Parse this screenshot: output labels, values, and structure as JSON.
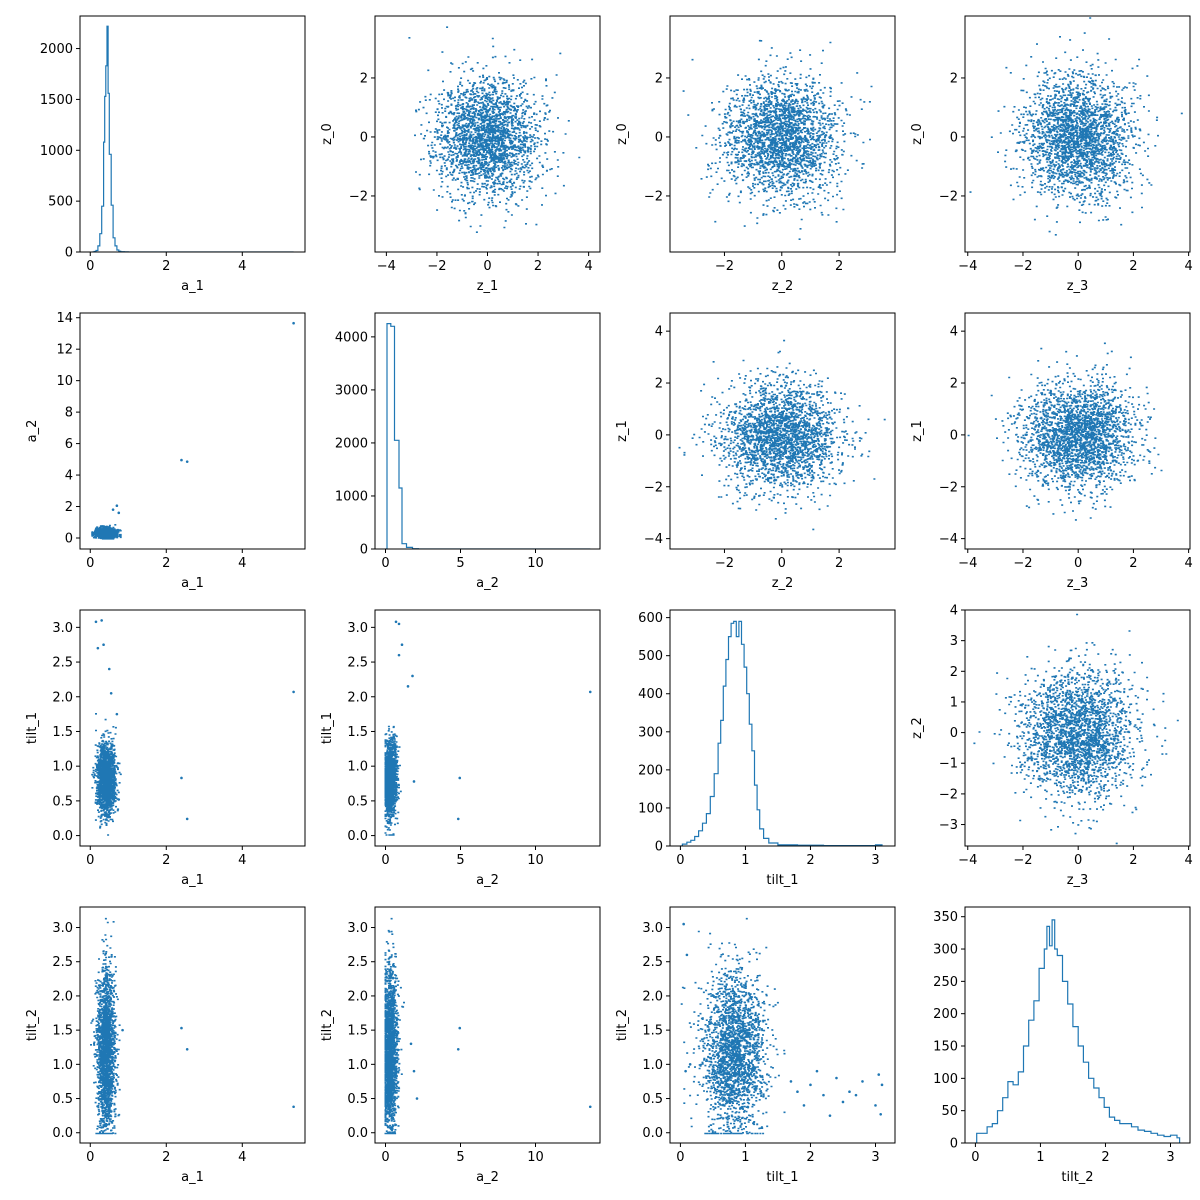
{
  "figure": {
    "rows": 4,
    "cols": 4,
    "accent": "#1f77b4"
  },
  "chart_data": [
    {
      "id": "p00",
      "type": "histogram",
      "row": 0,
      "col": 0,
      "xlabel": "a_1",
      "ylabel": "",
      "xlim": [
        -0.27,
        5.65
      ],
      "ylim": [
        0,
        2320
      ],
      "xticks": [
        0,
        2,
        4
      ],
      "yticks": [
        0,
        500,
        1000,
        1500,
        2000
      ],
      "bins": [
        [
          0.05,
          0
        ],
        [
          0.1,
          5
        ],
        [
          0.15,
          15
        ],
        [
          0.2,
          60
        ],
        [
          0.25,
          180
        ],
        [
          0.3,
          450
        ],
        [
          0.35,
          1080
        ],
        [
          0.38,
          1530
        ],
        [
          0.41,
          1830
        ],
        [
          0.44,
          2220
        ],
        [
          0.47,
          1560
        ],
        [
          0.5,
          960
        ],
        [
          0.55,
          460
        ],
        [
          0.6,
          140
        ],
        [
          0.65,
          60
        ],
        [
          0.7,
          20
        ],
        [
          0.75,
          8
        ],
        [
          0.8,
          3
        ],
        [
          0.9,
          1
        ],
        [
          1.0,
          0
        ],
        [
          5.35,
          0
        ]
      ]
    },
    {
      "id": "p01",
      "type": "scatter",
      "row": 0,
      "col": 1,
      "xlabel": "z_1",
      "ylabel": "z_0",
      "xlim": [
        -4.45,
        4.45
      ],
      "ylim": [
        -3.9,
        4.1
      ],
      "xticks": [
        -4,
        -2,
        0,
        2,
        4
      ],
      "yticks": [
        -2,
        0,
        2
      ],
      "cloud": {
        "cx": 0,
        "cy": 0,
        "sx": 1.0,
        "sy": 1.0,
        "n": 2400,
        "seed": 11
      }
    },
    {
      "id": "p02",
      "type": "scatter",
      "row": 0,
      "col": 2,
      "xlabel": "z_2",
      "ylabel": "z_0",
      "xlim": [
        -3.9,
        3.95
      ],
      "ylim": [
        -3.9,
        4.1
      ],
      "xticks": [
        -2,
        0,
        2
      ],
      "yticks": [
        -2,
        0,
        2
      ],
      "cloud": {
        "cx": 0,
        "cy": 0,
        "sx": 1.0,
        "sy": 1.0,
        "n": 2400,
        "seed": 12
      }
    },
    {
      "id": "p03",
      "type": "scatter",
      "row": 0,
      "col": 3,
      "xlabel": "z_3",
      "ylabel": "z_0",
      "xlim": [
        -4.1,
        4.05
      ],
      "ylim": [
        -3.9,
        4.1
      ],
      "xticks": [
        -4,
        -2,
        0,
        2,
        4
      ],
      "yticks": [
        -2,
        0,
        2
      ],
      "cloud": {
        "cx": 0,
        "cy": 0,
        "sx": 1.0,
        "sy": 1.0,
        "n": 2400,
        "seed": 13
      }
    },
    {
      "id": "p10",
      "type": "scatter",
      "row": 1,
      "col": 0,
      "xlabel": "a_1",
      "ylabel": "a_2",
      "xlim": [
        -0.27,
        5.65
      ],
      "ylim": [
        -0.7,
        14.3
      ],
      "xticks": [
        0,
        2,
        4
      ],
      "yticks": [
        0,
        2,
        4,
        6,
        8,
        10,
        12,
        14
      ],
      "cloud": {
        "cx": 0.42,
        "cy": 0.35,
        "sx": 0.13,
        "sy": 0.15,
        "n": 1800,
        "seed": 21,
        "clip_x": [
          0.05,
          0.8
        ],
        "clip_y": [
          0.0,
          1.4
        ]
      },
      "points": [
        [
          5.35,
          13.65
        ],
        [
          2.4,
          4.95
        ],
        [
          2.55,
          4.85
        ],
        [
          0.7,
          2.05
        ],
        [
          0.6,
          1.8
        ],
        [
          0.75,
          1.6
        ]
      ]
    },
    {
      "id": "p11",
      "type": "histogram",
      "row": 1,
      "col": 1,
      "xlabel": "a_2",
      "ylabel": "",
      "xlim": [
        -0.7,
        14.3
      ],
      "ylim": [
        0,
        4450
      ],
      "xticks": [
        0,
        5,
        10
      ],
      "yticks": [
        0,
        1000,
        2000,
        3000,
        4000
      ],
      "bins": [
        [
          0,
          0
        ],
        [
          0.1,
          4250
        ],
        [
          0.35,
          4200
        ],
        [
          0.6,
          2050
        ],
        [
          0.9,
          1150
        ],
        [
          1.1,
          100
        ],
        [
          1.4,
          30
        ],
        [
          1.8,
          5
        ],
        [
          2.2,
          0
        ],
        [
          13.65,
          0
        ]
      ]
    },
    {
      "id": "p12",
      "type": "scatter",
      "row": 1,
      "col": 2,
      "xlabel": "z_2",
      "ylabel": "z_1",
      "xlim": [
        -3.9,
        3.95
      ],
      "ylim": [
        -4.4,
        4.7
      ],
      "xticks": [
        -2,
        0,
        2
      ],
      "yticks": [
        -4,
        -2,
        0,
        2,
        4
      ],
      "cloud": {
        "cx": 0,
        "cy": 0,
        "sx": 1.0,
        "sy": 1.0,
        "n": 2400,
        "seed": 22
      }
    },
    {
      "id": "p13",
      "type": "scatter",
      "row": 1,
      "col": 3,
      "xlabel": "z_3",
      "ylabel": "z_1",
      "xlim": [
        -4.1,
        4.05
      ],
      "ylim": [
        -4.4,
        4.7
      ],
      "xticks": [
        -4,
        -2,
        0,
        2,
        4
      ],
      "yticks": [
        -4,
        -2,
        0,
        2,
        4
      ],
      "cloud": {
        "cx": 0,
        "cy": 0,
        "sx": 1.0,
        "sy": 1.0,
        "n": 2400,
        "seed": 23
      }
    },
    {
      "id": "p20",
      "type": "scatter",
      "row": 2,
      "col": 0,
      "xlabel": "a_1",
      "ylabel": "tilt_1",
      "xlim": [
        -0.27,
        5.65
      ],
      "ylim": [
        -0.15,
        3.25
      ],
      "xticks": [
        0,
        2,
        4
      ],
      "yticks": [
        0.0,
        0.5,
        1.0,
        1.5,
        2.0,
        2.5,
        3.0
      ],
      "cloud": {
        "cx": 0.42,
        "cy": 0.82,
        "sx": 0.12,
        "sy": 0.24,
        "n": 1800,
        "seed": 31,
        "clip_x": [
          0.05,
          0.85
        ],
        "clip_y": [
          0.02,
          2.5
        ]
      },
      "points": [
        [
          5.35,
          2.07
        ],
        [
          2.4,
          0.83
        ],
        [
          2.55,
          0.24
        ],
        [
          0.15,
          3.08
        ],
        [
          0.3,
          3.1
        ],
        [
          0.35,
          2.75
        ],
        [
          0.2,
          2.7
        ],
        [
          0.5,
          2.4
        ],
        [
          0.55,
          2.05
        ],
        [
          0.75,
          0.52
        ],
        [
          0.7,
          1.75
        ]
      ]
    },
    {
      "id": "p21",
      "type": "scatter",
      "row": 2,
      "col": 1,
      "xlabel": "a_2",
      "ylabel": "tilt_1",
      "xlim": [
        -0.7,
        14.3
      ],
      "ylim": [
        -0.15,
        3.25
      ],
      "xticks": [
        0,
        5,
        10
      ],
      "yticks": [
        0.0,
        0.5,
        1.0,
        1.5,
        2.0,
        2.5,
        3.0
      ],
      "cloud": {
        "cx": 0.3,
        "cy": 0.82,
        "sx": 0.22,
        "sy": 0.26,
        "n": 1800,
        "seed": 32,
        "clip_x": [
          0.0,
          1.6
        ],
        "clip_y": [
          0.02,
          2.5
        ]
      },
      "points": [
        [
          13.65,
          2.07
        ],
        [
          4.95,
          0.83
        ],
        [
          4.85,
          0.24
        ],
        [
          0.7,
          3.08
        ],
        [
          0.9,
          3.05
        ],
        [
          1.1,
          2.75
        ],
        [
          0.9,
          2.6
        ],
        [
          1.8,
          2.3
        ],
        [
          1.5,
          2.15
        ],
        [
          1.9,
          0.78
        ]
      ]
    },
    {
      "id": "p22",
      "type": "histogram",
      "row": 2,
      "col": 2,
      "xlabel": "tilt_1",
      "ylabel": "",
      "xlim": [
        -0.16,
        3.3
      ],
      "ylim": [
        0,
        620
      ],
      "xticks": [
        0,
        1,
        2,
        3
      ],
      "yticks": [
        0,
        100,
        200,
        300,
        400,
        500,
        600
      ],
      "bins": [
        [
          0,
          0
        ],
        [
          0.03,
          5
        ],
        [
          0.1,
          10
        ],
        [
          0.16,
          15
        ],
        [
          0.22,
          25
        ],
        [
          0.28,
          40
        ],
        [
          0.34,
          60
        ],
        [
          0.4,
          85
        ],
        [
          0.46,
          130
        ],
        [
          0.52,
          190
        ],
        [
          0.58,
          270
        ],
        [
          0.62,
          330
        ],
        [
          0.66,
          420
        ],
        [
          0.7,
          490
        ],
        [
          0.74,
          550
        ],
        [
          0.78,
          585
        ],
        [
          0.82,
          590
        ],
        [
          0.86,
          550
        ],
        [
          0.9,
          590
        ],
        [
          0.94,
          530
        ],
        [
          0.98,
          470
        ],
        [
          1.02,
          400
        ],
        [
          1.06,
          320
        ],
        [
          1.1,
          250
        ],
        [
          1.14,
          160
        ],
        [
          1.18,
          95
        ],
        [
          1.22,
          45
        ],
        [
          1.28,
          20
        ],
        [
          1.36,
          8
        ],
        [
          1.5,
          3
        ],
        [
          1.8,
          2
        ],
        [
          2.2,
          1
        ],
        [
          2.6,
          1
        ],
        [
          3.0,
          3
        ],
        [
          3.1,
          0
        ]
      ]
    },
    {
      "id": "p23",
      "type": "scatter",
      "row": 2,
      "col": 3,
      "xlabel": "z_3",
      "ylabel": "z_2",
      "xlim": [
        -4.1,
        4.05
      ],
      "ylim": [
        -3.7,
        4.0
      ],
      "xticks": [
        -4,
        -2,
        0,
        2,
        4
      ],
      "yticks": [
        -3,
        -2,
        -1,
        0,
        1,
        2,
        3,
        4
      ],
      "cloud": {
        "cx": 0,
        "cy": 0,
        "sx": 1.0,
        "sy": 1.0,
        "n": 2400,
        "seed": 33
      }
    },
    {
      "id": "p30",
      "type": "scatter",
      "row": 3,
      "col": 0,
      "xlabel": "a_1",
      "ylabel": "tilt_2",
      "xlim": [
        -0.27,
        5.65
      ],
      "ylim": [
        -0.15,
        3.3
      ],
      "xticks": [
        0,
        2,
        4
      ],
      "yticks": [
        0.0,
        0.5,
        1.0,
        1.5,
        2.0,
        2.5,
        3.0
      ],
      "cloud": {
        "cx": 0.42,
        "cy": 1.2,
        "sx": 0.12,
        "sy": 0.6,
        "n": 2000,
        "seed": 41,
        "clip_x": [
          0.02,
          0.85
        ],
        "clip_y": [
          0.0,
          3.14
        ]
      },
      "points": [
        [
          5.35,
          0.38
        ],
        [
          2.4,
          1.53
        ],
        [
          2.55,
          1.22
        ],
        [
          0.85,
          1.5
        ]
      ]
    },
    {
      "id": "p31",
      "type": "scatter",
      "row": 3,
      "col": 1,
      "xlabel": "a_2",
      "ylabel": "tilt_2",
      "xlim": [
        -0.7,
        14.3
      ],
      "ylim": [
        -0.15,
        3.3
      ],
      "xticks": [
        0,
        5,
        10
      ],
      "yticks": [
        0.0,
        0.5,
        1.0,
        1.5,
        2.0,
        2.5,
        3.0
      ],
      "cloud": {
        "cx": 0.3,
        "cy": 1.2,
        "sx": 0.25,
        "sy": 0.6,
        "n": 2000,
        "seed": 42,
        "clip_x": [
          0.0,
          1.8
        ],
        "clip_y": [
          0.0,
          3.14
        ]
      },
      "points": [
        [
          13.65,
          0.38
        ],
        [
          4.95,
          1.53
        ],
        [
          4.85,
          1.22
        ],
        [
          2.1,
          0.5
        ],
        [
          1.9,
          0.9
        ],
        [
          1.7,
          1.3
        ]
      ]
    },
    {
      "id": "p32",
      "type": "scatter",
      "row": 3,
      "col": 2,
      "xlabel": "tilt_1",
      "ylabel": "tilt_2",
      "xlim": [
        -0.16,
        3.3
      ],
      "ylim": [
        -0.15,
        3.3
      ],
      "xticks": [
        0,
        1,
        2,
        3
      ],
      "yticks": [
        0.0,
        0.5,
        1.0,
        1.5,
        2.0,
        2.5,
        3.0
      ],
      "cloud": {
        "cx": 0.82,
        "cy": 1.2,
        "sx": 0.24,
        "sy": 0.6,
        "n": 2200,
        "seed": 43,
        "clip_x": [
          0.02,
          1.6
        ],
        "clip_y": [
          0.0,
          3.14
        ]
      },
      "points": [
        [
          0.05,
          3.05
        ],
        [
          0.1,
          2.6
        ],
        [
          0.15,
          1.0
        ],
        [
          0.08,
          0.9
        ],
        [
          1.8,
          0.6
        ],
        [
          2.0,
          0.7
        ],
        [
          2.2,
          0.55
        ],
        [
          2.4,
          0.8
        ],
        [
          2.5,
          0.45
        ],
        [
          2.6,
          0.6
        ],
        [
          2.8,
          0.75
        ],
        [
          3.0,
          0.4
        ],
        [
          3.05,
          0.85
        ],
        [
          3.1,
          0.7
        ],
        [
          3.08,
          0.27
        ],
        [
          2.3,
          0.25
        ],
        [
          1.9,
          0.4
        ],
        [
          2.1,
          0.9
        ],
        [
          2.7,
          0.55
        ],
        [
          1.7,
          0.75
        ]
      ]
    },
    {
      "id": "p33",
      "type": "histogram",
      "row": 3,
      "col": 3,
      "xlabel": "tilt_2",
      "ylabel": "",
      "xlim": [
        -0.16,
        3.3
      ],
      "ylim": [
        0,
        365
      ],
      "xticks": [
        0,
        1,
        2,
        3
      ],
      "yticks": [
        0,
        50,
        100,
        150,
        200,
        250,
        300,
        350
      ],
      "bins": [
        [
          0,
          0
        ],
        [
          0.02,
          15
        ],
        [
          0.1,
          15
        ],
        [
          0.18,
          25
        ],
        [
          0.26,
          30
        ],
        [
          0.34,
          50
        ],
        [
          0.42,
          70
        ],
        [
          0.5,
          95
        ],
        [
          0.58,
          90
        ],
        [
          0.66,
          110
        ],
        [
          0.74,
          150
        ],
        [
          0.82,
          190
        ],
        [
          0.9,
          220
        ],
        [
          0.98,
          270
        ],
        [
          1.06,
          300
        ],
        [
          1.1,
          335
        ],
        [
          1.14,
          305
        ],
        [
          1.18,
          345
        ],
        [
          1.22,
          300
        ],
        [
          1.26,
          290
        ],
        [
          1.34,
          250
        ],
        [
          1.42,
          215
        ],
        [
          1.5,
          180
        ],
        [
          1.58,
          150
        ],
        [
          1.66,
          125
        ],
        [
          1.74,
          100
        ],
        [
          1.82,
          85
        ],
        [
          1.9,
          70
        ],
        [
          1.98,
          55
        ],
        [
          2.06,
          40
        ],
        [
          2.14,
          35
        ],
        [
          2.22,
          30
        ],
        [
          2.3,
          30
        ],
        [
          2.4,
          25
        ],
        [
          2.5,
          20
        ],
        [
          2.6,
          18
        ],
        [
          2.7,
          15
        ],
        [
          2.8,
          12
        ],
        [
          2.9,
          10
        ],
        [
          3.0,
          12
        ],
        [
          3.1,
          8
        ],
        [
          3.14,
          0
        ]
      ]
    }
  ]
}
